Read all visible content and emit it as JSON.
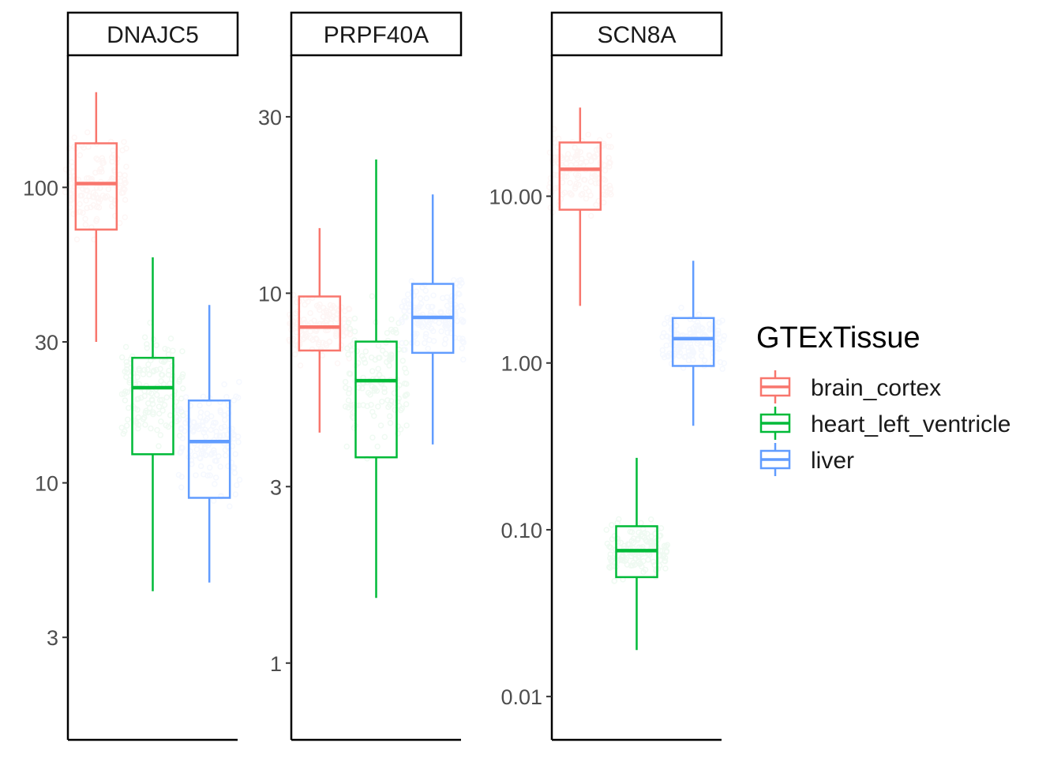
{
  "chart_data": {
    "type": "boxplot",
    "y_scale": "log10",
    "legend": {
      "title": "GTExTissue",
      "position": "right",
      "entries": [
        {
          "label": "brain_cortex",
          "color": "#F8766D"
        },
        {
          "label": "heart_left_ventricle",
          "color": "#00BA38"
        },
        {
          "label": "liver",
          "color": "#619CFF"
        }
      ]
    },
    "panels": [
      {
        "title": "DNAJC5",
        "ylim": [
          1.35,
          280
        ],
        "yticks": [
          {
            "value": 3,
            "label": "3"
          },
          {
            "value": 10,
            "label": "10"
          },
          {
            "value": 30,
            "label": "30"
          },
          {
            "value": 100,
            "label": "100"
          }
        ],
        "boxes": [
          {
            "tissue": "brain_cortex",
            "min": 30,
            "q1": 72,
            "median": 103,
            "q3": 141,
            "max": 210
          },
          {
            "tissue": "heart_left_ventricle",
            "min": 4.3,
            "q1": 12.5,
            "median": 21,
            "q3": 26.5,
            "max": 58
          },
          {
            "tissue": "liver",
            "min": 4.6,
            "q1": 8.9,
            "median": 13.8,
            "q3": 19,
            "max": 40
          }
        ]
      },
      {
        "title": "PRPF40A",
        "ylim": [
          0.62,
          44
        ],
        "yticks": [
          {
            "value": 1,
            "label": "1"
          },
          {
            "value": 3,
            "label": "3"
          },
          {
            "value": 10,
            "label": "10"
          },
          {
            "value": 30,
            "label": "30"
          }
        ],
        "boxes": [
          {
            "tissue": "brain_cortex",
            "min": 4.2,
            "q1": 7,
            "median": 8.1,
            "q3": 9.8,
            "max": 15
          },
          {
            "tissue": "heart_left_ventricle",
            "min": 1.5,
            "q1": 3.6,
            "median": 5.8,
            "q3": 7.4,
            "max": 23
          },
          {
            "tissue": "liver",
            "min": 3.9,
            "q1": 6.9,
            "median": 8.6,
            "q3": 10.6,
            "max": 18.5
          }
        ]
      },
      {
        "title": "SCN8A",
        "ylim": [
          0.0055,
          70
        ],
        "yticks": [
          {
            "value": 0.01,
            "label": "0.01"
          },
          {
            "value": 0.1,
            "label": "0.10"
          },
          {
            "value": 1,
            "label": "1.00"
          },
          {
            "value": 10,
            "label": "10.00"
          }
        ],
        "boxes": [
          {
            "tissue": "brain_cortex",
            "min": 2.2,
            "q1": 8.3,
            "median": 14.5,
            "q3": 21,
            "max": 34
          },
          {
            "tissue": "heart_left_ventricle",
            "min": 0.019,
            "q1": 0.052,
            "median": 0.075,
            "q3": 0.105,
            "max": 0.27
          },
          {
            "tissue": "liver",
            "min": 0.42,
            "q1": 0.96,
            "median": 1.4,
            "q3": 1.86,
            "max": 4.1
          }
        ]
      }
    ]
  }
}
